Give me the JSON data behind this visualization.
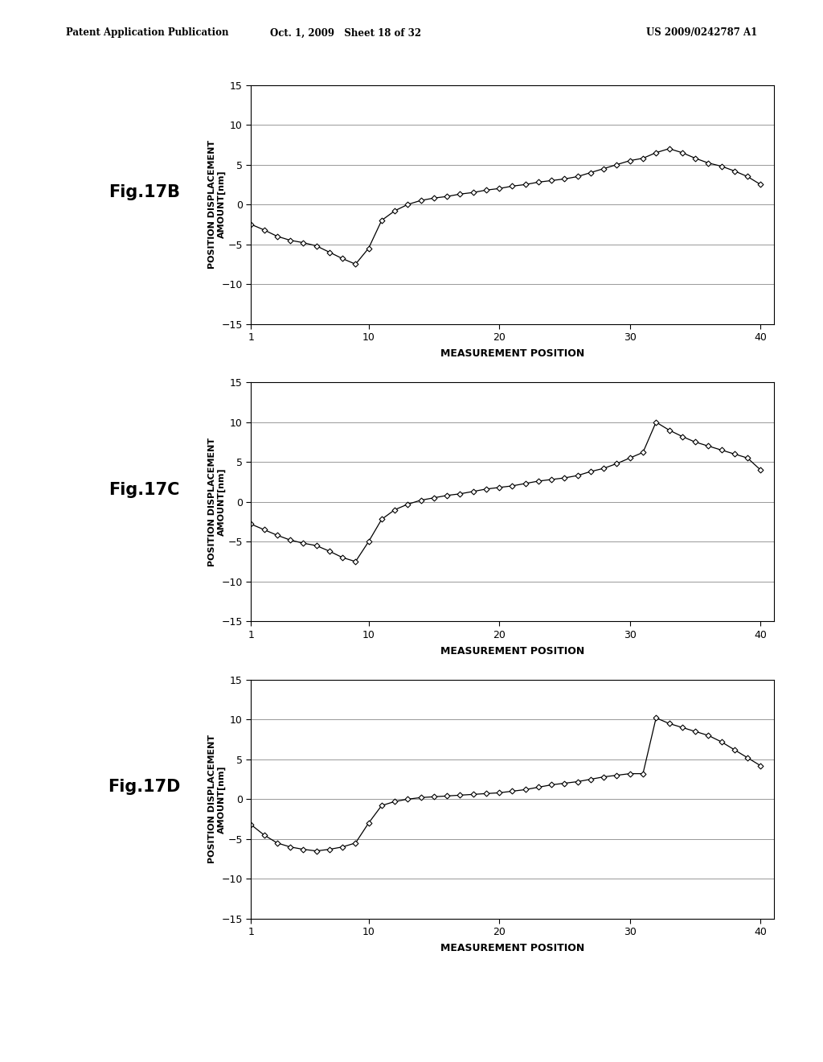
{
  "header_left": "Patent Application Publication",
  "header_mid": "Oct. 1, 2009   Sheet 18 of 32",
  "header_right": "US 2009/0242787 A1",
  "fig_labels": [
    "Fig.17B",
    "Fig.17C",
    "Fig.17D"
  ],
  "xlabel": "MEASUREMENT POSITION",
  "ylabel": "POSITION DISPLACEMENT\nAMOUNT[nm]",
  "xlim": [
    1,
    41
  ],
  "ylim": [
    -15,
    15
  ],
  "xticks": [
    1,
    10,
    20,
    30,
    40
  ],
  "yticks": [
    -15,
    -10,
    -5,
    0,
    5,
    10,
    15
  ],
  "background_color": "#ffffff",
  "line_color": "#000000",
  "marker": "D",
  "markersize": 3.5,
  "linewidth": 0.9,
  "data_17B": [
    -2.5,
    -3.2,
    -4.0,
    -4.5,
    -4.8,
    -5.2,
    -6.0,
    -6.8,
    -7.5,
    -5.5,
    -2.0,
    -0.8,
    0.0,
    0.5,
    0.8,
    1.0,
    1.3,
    1.5,
    1.8,
    2.0,
    2.3,
    2.5,
    2.8,
    3.0,
    3.2,
    3.5,
    4.0,
    4.5,
    5.0,
    5.5,
    5.8,
    6.5,
    7.0,
    6.5,
    5.8,
    5.2,
    4.8,
    4.2,
    3.5,
    2.5
  ],
  "data_17C": [
    -2.8,
    -3.5,
    -4.2,
    -4.8,
    -5.2,
    -5.5,
    -6.2,
    -7.0,
    -7.5,
    -5.0,
    -2.2,
    -1.0,
    -0.3,
    0.2,
    0.5,
    0.8,
    1.0,
    1.3,
    1.6,
    1.8,
    2.0,
    2.3,
    2.6,
    2.8,
    3.0,
    3.3,
    3.8,
    4.2,
    4.8,
    5.5,
    6.2,
    10.0,
    9.0,
    8.2,
    7.5,
    7.0,
    6.5,
    6.0,
    5.5,
    4.0
  ],
  "data_17D": [
    -3.2,
    -4.5,
    -5.5,
    -6.0,
    -6.3,
    -6.5,
    -6.3,
    -6.0,
    -5.5,
    -3.0,
    -0.8,
    -0.3,
    0.0,
    0.2,
    0.3,
    0.4,
    0.5,
    0.6,
    0.7,
    0.8,
    1.0,
    1.2,
    1.5,
    1.8,
    2.0,
    2.2,
    2.5,
    2.8,
    3.0,
    3.2,
    3.2,
    10.2,
    9.5,
    9.0,
    8.5,
    8.0,
    7.2,
    6.2,
    5.2,
    4.2
  ]
}
